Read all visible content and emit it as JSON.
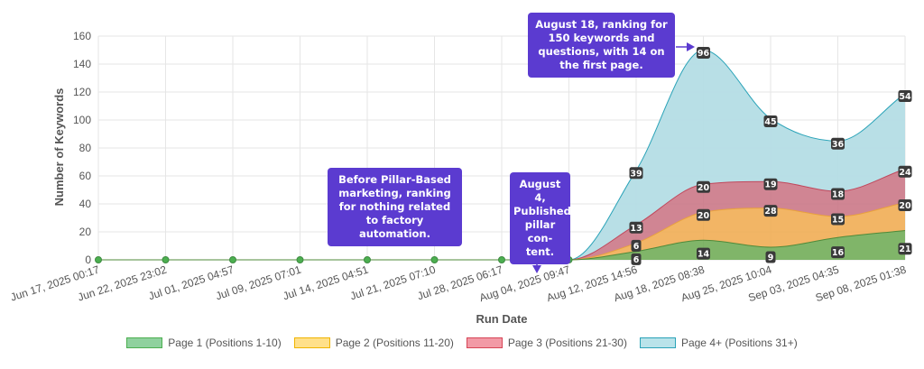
{
  "chart_data": {
    "type": "area",
    "xlabel": "Run Date",
    "ylabel": "Number of Keywords",
    "ylim": [
      0,
      160
    ],
    "yticks": [
      0,
      20,
      40,
      60,
      80,
      100,
      120,
      140,
      160
    ],
    "grid": true,
    "stacked": true,
    "legend_position": "bottom",
    "categories": [
      "Jun 17, 2025 00:17",
      "Jun 22, 2025 23:02",
      "Jul 01, 2025 04:57",
      "Jul 09, 2025 07:01",
      "Jul 14, 2025 04:51",
      "Jul 21, 2025 07:10",
      "Jul 28, 2025 06:17",
      "Aug 04, 2025 09:47",
      "Aug 12, 2025 14:56",
      "Aug 18, 2025 08:38",
      "Aug 25, 2025 10:04",
      "Sep 03, 2025 04:35",
      "Sep 08, 2025 01:38"
    ],
    "series": [
      {
        "name": "Page 1 (Positions 1-10)",
        "values": [
          0,
          0,
          0,
          0,
          0,
          0,
          0,
          0,
          6,
          14,
          9,
          16,
          21
        ],
        "fill": "#6aa84f",
        "stroke": "#4f8a3a",
        "swatch": "#8fd19e",
        "swatch_border": "#4caf50"
      },
      {
        "name": "Page 2 (Positions 11-20)",
        "values": [
          0,
          0,
          0,
          0,
          0,
          0,
          0,
          0,
          6,
          20,
          28,
          15,
          20
        ],
        "fill": "#f0a84a",
        "stroke": "#e8a13d",
        "swatch": "#ffe08a",
        "swatch_border": "#f0b400"
      },
      {
        "name": "Page 3 (Positions 21-30)",
        "values": [
          0,
          0,
          0,
          0,
          0,
          0,
          0,
          0,
          13,
          20,
          19,
          18,
          24
        ],
        "fill": "#c87080",
        "stroke": "#c0485c",
        "swatch": "#f29aa6",
        "swatch_border": "#d64556"
      },
      {
        "name": "Page 4+ (Positions 31+)",
        "values": [
          0,
          0,
          0,
          0,
          0,
          0,
          0,
          0,
          39,
          96,
          45,
          36,
          54
        ],
        "fill": "#b4dde5",
        "stroke": "#2aa3b8",
        "swatch": "#b9e3ea",
        "swatch_border": "#2aa3b8"
      }
    ],
    "annotations": [
      {
        "text": "Before Pillar-Based marketing, ranking for nothing related to factory automation."
      },
      {
        "text": "August 4, Published pillar con- tent."
      },
      {
        "text": "August 18, ranking for 150 keywords and questions, with 14 on the first page."
      }
    ]
  },
  "colors": {
    "annotation_bg": "#5b3bd0",
    "grid": "#e6e6e6",
    "label_bg": "#3a3a3a",
    "marker": "#4caf50"
  }
}
